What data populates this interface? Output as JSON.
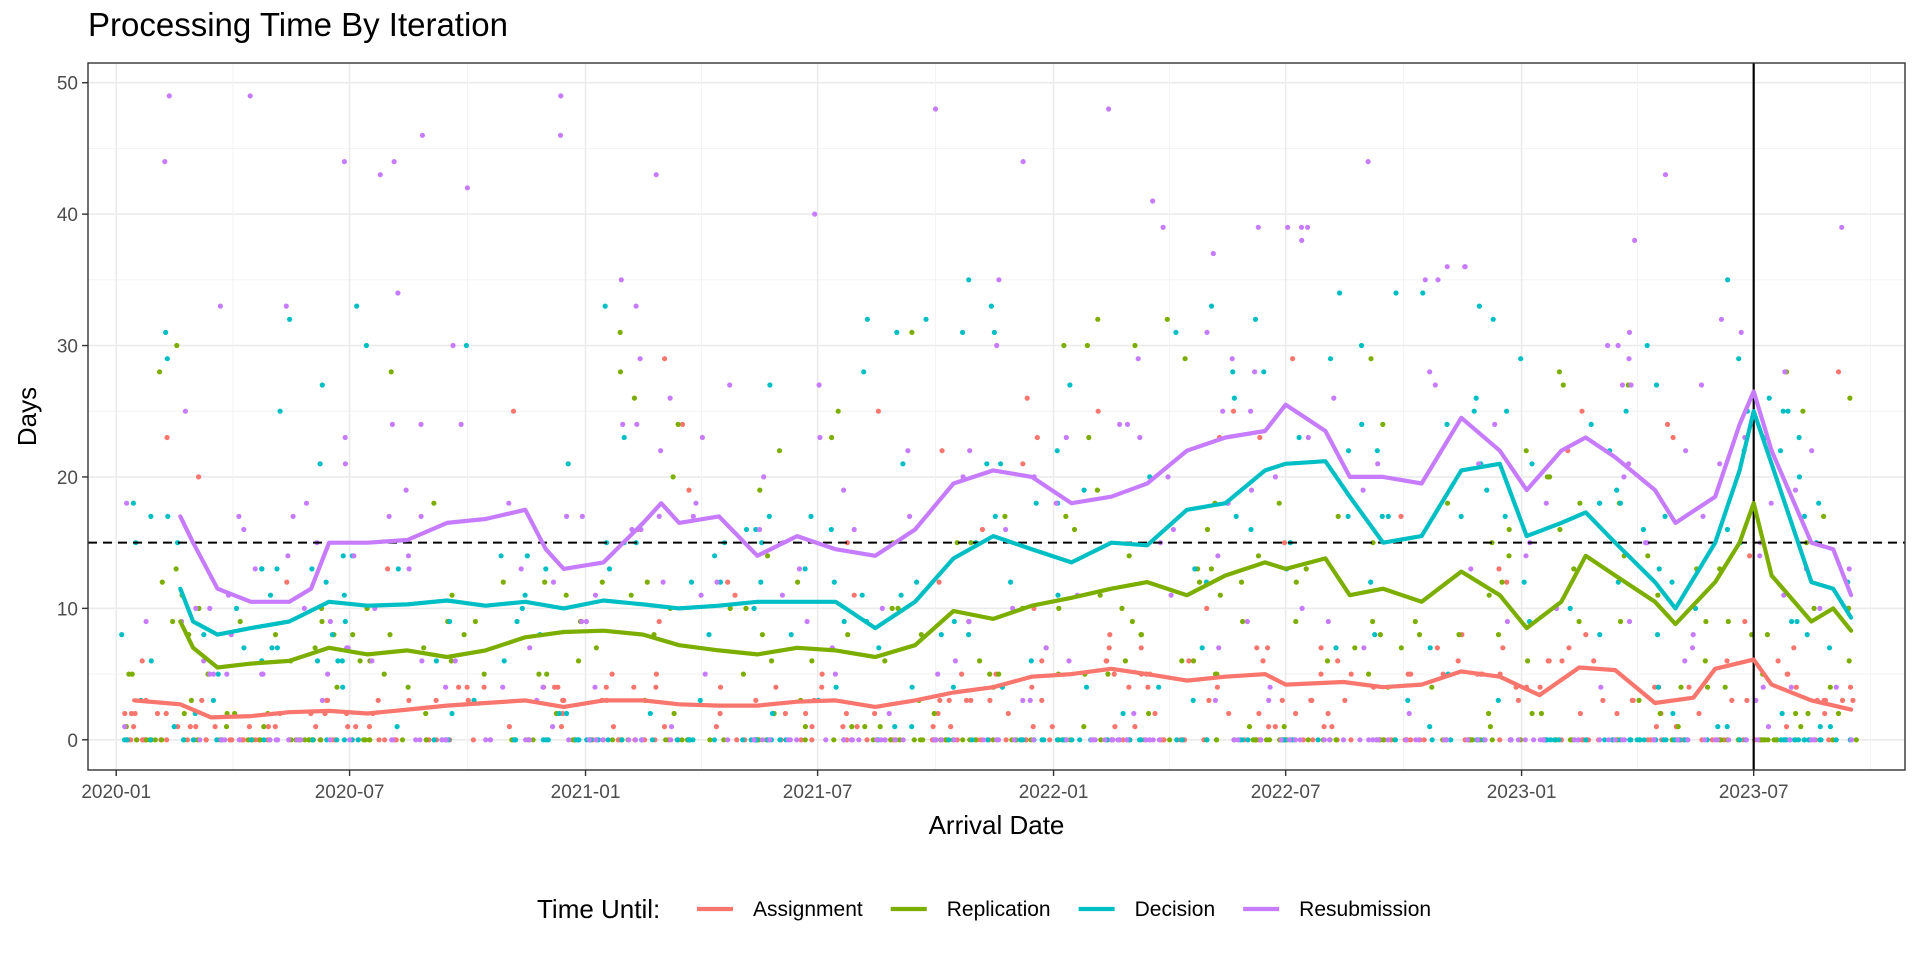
{
  "chart_data": {
    "type": "line",
    "title": "Processing Time By Iteration",
    "xlabel": "Arrival Date",
    "ylabel": "Days",
    "x_axis": {
      "type": "date",
      "lim": [
        "2019-12-10",
        "2023-10-27"
      ],
      "ticks": [
        "2020-01-01",
        "2020-07-01",
        "2021-01-01",
        "2021-07-01",
        "2022-01-01",
        "2022-07-01",
        "2023-01-01",
        "2023-07-01"
      ],
      "tick_labels": [
        "2020-01",
        "2020-07",
        "2021-01",
        "2021-07",
        "2022-01",
        "2022-07",
        "2023-01",
        "2023-07"
      ]
    },
    "y_axis": {
      "lim": [
        -2.3,
        51.5
      ],
      "ticks": [
        0,
        10,
        20,
        30,
        40,
        50
      ],
      "tick_labels": [
        "0",
        "10",
        "20",
        "30",
        "40",
        "50"
      ]
    },
    "grid": true,
    "reference_lines": [
      {
        "orientation": "horizontal",
        "value": 15,
        "style": "dashed",
        "color": "#000000"
      },
      {
        "orientation": "vertical",
        "value": "2023-07-01",
        "style": "solid",
        "color": "#000000"
      }
    ],
    "legend": {
      "title": "Time Until:",
      "position": "bottom"
    },
    "series": [
      {
        "name": "Assignment",
        "color": "#F8766D",
        "x": [
          "2020-01-15",
          "2020-02-20",
          "2020-03-15",
          "2020-04-15",
          "2020-05-15",
          "2020-06-15",
          "2020-07-15",
          "2020-08-15",
          "2020-09-15",
          "2020-10-15",
          "2020-11-15",
          "2020-12-15",
          "2021-01-15",
          "2021-02-15",
          "2021-03-15",
          "2021-04-15",
          "2021-05-15",
          "2021-06-15",
          "2021-07-15",
          "2021-08-15",
          "2021-09-15",
          "2021-10-15",
          "2021-11-15",
          "2021-12-15",
          "2022-01-15",
          "2022-02-15",
          "2022-03-15",
          "2022-04-15",
          "2022-05-15",
          "2022-06-15",
          "2022-07-01",
          "2022-08-15",
          "2022-09-15",
          "2022-10-15",
          "2022-11-15",
          "2022-12-15",
          "2023-01-15",
          "2023-02-15",
          "2023-03-15",
          "2023-04-15",
          "2023-05-15",
          "2023-06-01",
          "2023-07-01",
          "2023-07-15",
          "2023-08-15",
          "2023-09-15"
        ],
        "values": [
          3,
          2.7,
          1.7,
          1.8,
          2.1,
          2.2,
          2.0,
          2.3,
          2.6,
          2.8,
          3.0,
          2.5,
          3.0,
          3.0,
          2.7,
          2.6,
          2.6,
          2.9,
          3.0,
          2.5,
          3.0,
          3.6,
          4.0,
          4.8,
          5.0,
          5.4,
          5.0,
          4.5,
          4.8,
          5.0,
          4.2,
          4.4,
          4.0,
          4.2,
          5.2,
          4.8,
          3.4,
          5.5,
          5.3,
          2.8,
          3.2,
          5.4,
          6.1,
          4.2,
          3.0,
          2.3
        ]
      },
      {
        "name": "Replication",
        "color": "#7CAE00",
        "x": [
          "2020-02-20",
          "2020-03-01",
          "2020-03-20",
          "2020-04-15",
          "2020-05-15",
          "2020-06-15",
          "2020-07-15",
          "2020-08-15",
          "2020-09-15",
          "2020-10-15",
          "2020-11-15",
          "2020-12-15",
          "2021-01-15",
          "2021-02-15",
          "2021-03-15",
          "2021-04-15",
          "2021-05-15",
          "2021-06-15",
          "2021-07-15",
          "2021-08-15",
          "2021-09-15",
          "2021-10-15",
          "2021-11-15",
          "2021-12-15",
          "2022-01-15",
          "2022-02-15",
          "2022-03-15",
          "2022-04-15",
          "2022-05-15",
          "2022-06-15",
          "2022-07-01",
          "2022-08-01",
          "2022-08-20",
          "2022-09-15",
          "2022-10-15",
          "2022-11-15",
          "2022-12-15",
          "2023-01-05",
          "2023-02-01",
          "2023-02-20",
          "2023-03-15",
          "2023-04-15",
          "2023-05-01",
          "2023-06-01",
          "2023-06-20",
          "2023-07-01",
          "2023-07-15",
          "2023-08-15",
          "2023-09-01",
          "2023-09-15"
        ],
        "values": [
          9,
          7,
          5.5,
          5.8,
          6.0,
          7.0,
          6.5,
          6.8,
          6.3,
          6.8,
          7.8,
          8.2,
          8.3,
          8.0,
          7.2,
          6.8,
          6.5,
          7.0,
          6.8,
          6.3,
          7.2,
          9.8,
          9.2,
          10.2,
          10.8,
          11.5,
          12.0,
          11.0,
          12.5,
          13.5,
          13.0,
          13.8,
          11.0,
          11.5,
          10.5,
          12.8,
          11.0,
          8.5,
          10.5,
          14.0,
          12.5,
          10.5,
          8.8,
          12.0,
          15.0,
          18.0,
          12.5,
          9.0,
          10.0,
          8.3
        ]
      },
      {
        "name": "Decision",
        "color": "#00BFC4",
        "x": [
          "2020-02-20",
          "2020-03-01",
          "2020-03-20",
          "2020-04-15",
          "2020-05-15",
          "2020-06-15",
          "2020-07-15",
          "2020-08-15",
          "2020-09-15",
          "2020-10-15",
          "2020-11-15",
          "2020-12-15",
          "2021-01-15",
          "2021-02-15",
          "2021-03-15",
          "2021-04-15",
          "2021-05-15",
          "2021-06-15",
          "2021-07-15",
          "2021-08-15",
          "2021-09-15",
          "2021-10-15",
          "2021-11-15",
          "2021-12-15",
          "2022-01-15",
          "2022-02-15",
          "2022-03-15",
          "2022-04-15",
          "2022-05-15",
          "2022-06-15",
          "2022-07-01",
          "2022-08-01",
          "2022-08-20",
          "2022-09-15",
          "2022-10-15",
          "2022-11-15",
          "2022-12-15",
          "2023-01-05",
          "2023-02-01",
          "2023-02-20",
          "2023-03-15",
          "2023-04-15",
          "2023-05-01",
          "2023-06-01",
          "2023-06-20",
          "2023-07-01",
          "2023-07-15",
          "2023-08-15",
          "2023-09-01",
          "2023-09-15"
        ],
        "values": [
          11.5,
          9,
          8.0,
          8.5,
          9.0,
          10.5,
          10.2,
          10.3,
          10.6,
          10.2,
          10.5,
          10.0,
          10.6,
          10.3,
          10.0,
          10.2,
          10.5,
          10.5,
          10.5,
          8.5,
          10.5,
          13.8,
          15.5,
          14.5,
          13.5,
          15.0,
          14.8,
          17.5,
          18.0,
          20.5,
          21.0,
          21.2,
          18.5,
          15.0,
          15.5,
          20.5,
          21.0,
          15.5,
          16.5,
          17.3,
          15.0,
          12.0,
          10.0,
          15.0,
          20.5,
          25.0,
          21.0,
          12.0,
          11.5,
          9.3
        ]
      },
      {
        "name": "Resubmission",
        "color": "#C77CFF",
        "x": [
          "2020-02-20",
          "2020-03-01",
          "2020-03-20",
          "2020-04-15",
          "2020-05-15",
          "2020-06-01",
          "2020-06-15",
          "2020-07-15",
          "2020-08-15",
          "2020-09-15",
          "2020-10-15",
          "2020-11-15",
          "2020-12-01",
          "2020-12-15",
          "2021-01-15",
          "2021-02-15",
          "2021-03-01",
          "2021-03-15",
          "2021-04-15",
          "2021-05-15",
          "2021-06-15",
          "2021-07-15",
          "2021-08-15",
          "2021-09-15",
          "2021-10-15",
          "2021-11-15",
          "2021-12-15",
          "2022-01-15",
          "2022-02-15",
          "2022-03-15",
          "2022-04-15",
          "2022-05-15",
          "2022-06-15",
          "2022-07-01",
          "2022-08-01",
          "2022-08-20",
          "2022-09-15",
          "2022-10-15",
          "2022-11-15",
          "2022-12-15",
          "2023-01-05",
          "2023-02-01",
          "2023-02-20",
          "2023-03-15",
          "2023-04-15",
          "2023-05-01",
          "2023-06-01",
          "2023-06-20",
          "2023-07-01",
          "2023-07-15",
          "2023-08-15",
          "2023-09-01",
          "2023-09-15"
        ],
        "values": [
          17,
          15,
          11.5,
          10.5,
          10.5,
          11.5,
          15.0,
          15.0,
          15.2,
          16.5,
          16.8,
          17.5,
          14.5,
          13.0,
          13.5,
          16.5,
          18.0,
          16.5,
          17.0,
          14.0,
          15.5,
          14.5,
          14.0,
          16.0,
          19.5,
          20.5,
          20.0,
          18.0,
          18.5,
          19.5,
          22.0,
          23.0,
          23.5,
          25.5,
          23.5,
          20.0,
          20.0,
          19.5,
          24.5,
          22.0,
          19.0,
          22.0,
          23.0,
          21.5,
          19.0,
          16.5,
          18.5,
          24.0,
          26.5,
          22.0,
          15.0,
          14.5,
          11.0
        ]
      }
    ],
    "scatter_points": {
      "count": 1400,
      "y_values": "integers 0-49 (daily observations per series)",
      "note": "raw observations shown as points behind the smoothed lines"
    }
  }
}
